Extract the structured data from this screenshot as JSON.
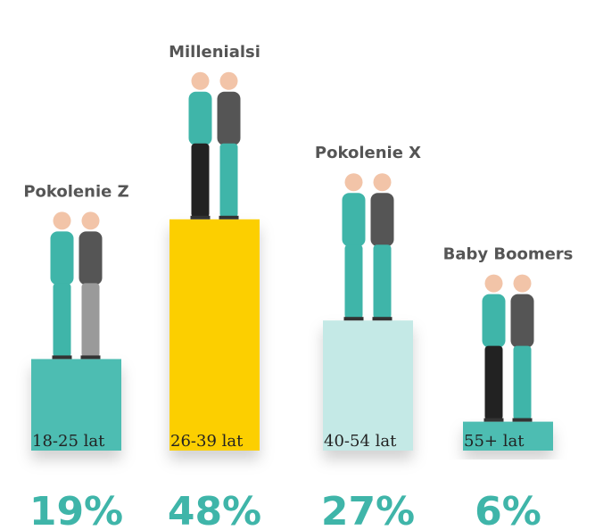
{
  "chart_data": {
    "type": "bar",
    "groups": [
      "Pokolenie Z",
      "Millenialsi",
      "Pokolenie X",
      "Baby Boomers"
    ],
    "categories": [
      "18-25 lat",
      "26-39 lat",
      "40-54 lat",
      "55+ lat"
    ],
    "values": [
      19,
      48,
      27,
      6
    ],
    "value_labels": [
      "19%",
      "48%",
      "27%",
      "6%"
    ],
    "colors": [
      "#4dbdb2",
      "#fccf00",
      "#c4e9e6",
      "#4dbdb2"
    ]
  }
}
